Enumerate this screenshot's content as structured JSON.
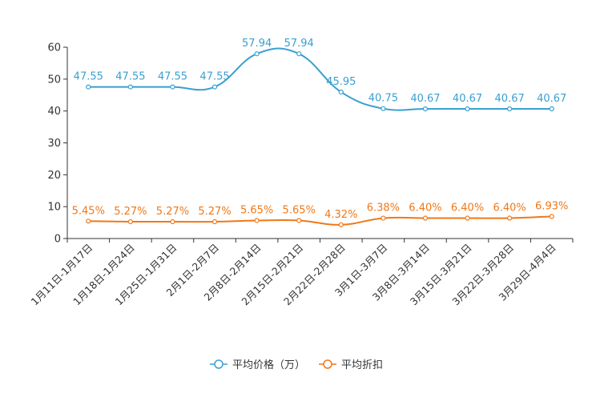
{
  "chart_data": {
    "type": "line",
    "title": "",
    "xlabel": "",
    "ylabel": "",
    "ylim": [
      0,
      60
    ],
    "yticks": [
      0,
      10,
      20,
      30,
      40,
      50,
      60
    ],
    "grid": false,
    "legend_position": "bottom-center",
    "categories": [
      "1月11日-1月17日",
      "1月18日-1月24日",
      "1月25日-1月31日",
      "2月1日-2月7日",
      "2月8日-2月14日",
      "2月15日-2月21日",
      "2月22日-2月28日",
      "3月1日-3月7日",
      "3月8日-3月14日",
      "3月15日-3月21日",
      "3月22日-3月28日",
      "3月29日-4月4日"
    ],
    "series": [
      {
        "name": "平均价格（万）",
        "color": "#3a9fd0",
        "values": [
          47.55,
          47.55,
          47.55,
          47.55,
          57.94,
          57.94,
          45.95,
          40.75,
          40.67,
          40.67,
          40.67,
          40.67
        ],
        "labels": [
          "47.55",
          "47.55",
          "47.55",
          "47.55",
          "57.94",
          "57.94",
          "45.95",
          "40.75",
          "40.67",
          "40.67",
          "40.67",
          "40.67"
        ]
      },
      {
        "name": "平均折扣",
        "color": "#f07818",
        "values": [
          5.45,
          5.27,
          5.27,
          5.27,
          5.65,
          5.65,
          4.32,
          6.38,
          6.4,
          6.4,
          6.4,
          6.93
        ],
        "labels": [
          "5.45%",
          "5.27%",
          "5.27%",
          "5.27%",
          "5.65%",
          "5.65%",
          "4.32%",
          "6.38%",
          "6.40%",
          "6.40%",
          "6.40%",
          "6.93%"
        ]
      }
    ]
  }
}
